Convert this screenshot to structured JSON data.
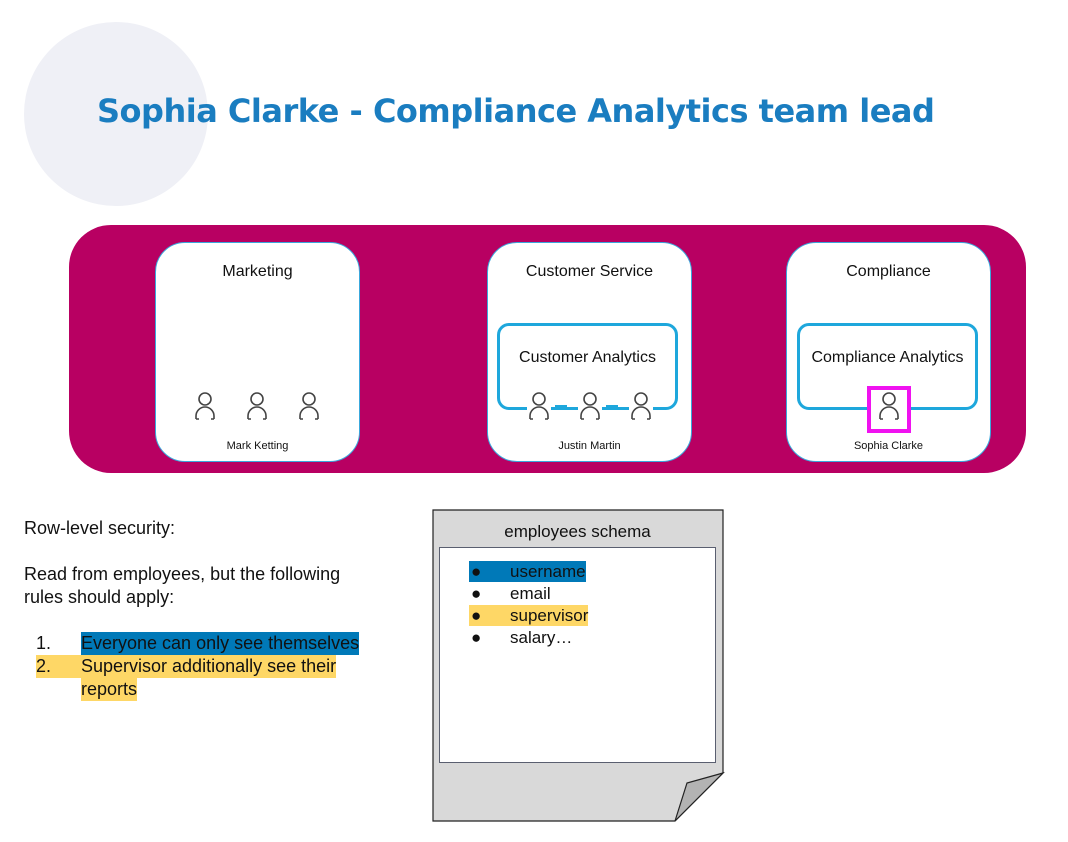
{
  "title": "Sophia Clarke - Compliance Analytics team lead",
  "colors": {
    "band": "#b80062",
    "title": "#1a7dc0",
    "team_border": "#1ea7dc",
    "highlight_person": "#f012f0",
    "rule_blue": "#0079b8",
    "rule_yellow": "#fed766"
  },
  "departments": [
    {
      "name": "Marketing",
      "lead": "Mark Ketting"
    },
    {
      "name": "Customer Service",
      "team": "Customer Analytics",
      "lead": "Justin Martin"
    },
    {
      "name": "Compliance",
      "team": "Compliance Analytics",
      "lead": "Sophia Clarke"
    }
  ],
  "notes": {
    "heading": "Row-level security:",
    "intro_line1": "Read from employees, but the following",
    "intro_line2": "rules should apply:",
    "rules": [
      {
        "num": "1.",
        "line1": "Everyone can only see themselves",
        "highlight": "blue"
      },
      {
        "num": "2.",
        "line1": "Supervisor additionally see their",
        "line2": "reports",
        "highlight": "yellow"
      }
    ]
  },
  "schema": {
    "title": "employees schema",
    "fields": [
      {
        "name": "username",
        "highlight": "blue"
      },
      {
        "name": "email"
      },
      {
        "name": "supervisor",
        "highlight": "yellow"
      },
      {
        "name": "salary…"
      }
    ]
  }
}
